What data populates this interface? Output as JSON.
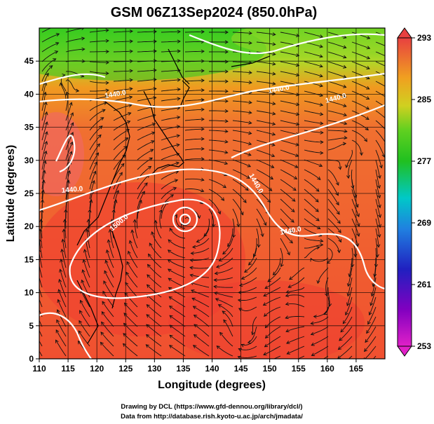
{
  "title": "GSM 06Z13Sep2024 (850.0hPa)",
  "xlabel": "Longitude (degrees)",
  "ylabel": "Latitude  (degrees)",
  "x_ticks": [
    "110",
    "115",
    "120",
    "125",
    "130",
    "135",
    "140",
    "145",
    "150",
    "155",
    "160",
    "165"
  ],
  "y_ticks": [
    "0",
    "5",
    "10",
    "15",
    "20",
    "25",
    "30",
    "35",
    "40",
    "45"
  ],
  "colorbar": {
    "ticks": [
      "253",
      "261",
      "269",
      "277",
      "285",
      "293"
    ]
  },
  "contour_labels": [
    "1440.0",
    "1440.0",
    "1500.0",
    "1440.0",
    "1440.0",
    "1440.0",
    "1440.0"
  ],
  "credits": {
    "line1": "Drawing by DCL (https://www.gfd-dennou.org/library/dcl/)",
    "line2": "Data from http://database.rish.kyoto-u.ac.jp/arch/jmadata/"
  },
  "map": {
    "projection": "lat-lon",
    "lon_range": [
      110,
      170
    ],
    "lat_range": [
      0,
      50
    ],
    "field": "temperature (K) shaded, geopotential height contours (white), streamlines (black)",
    "color_range": [
      253,
      293
    ]
  }
}
